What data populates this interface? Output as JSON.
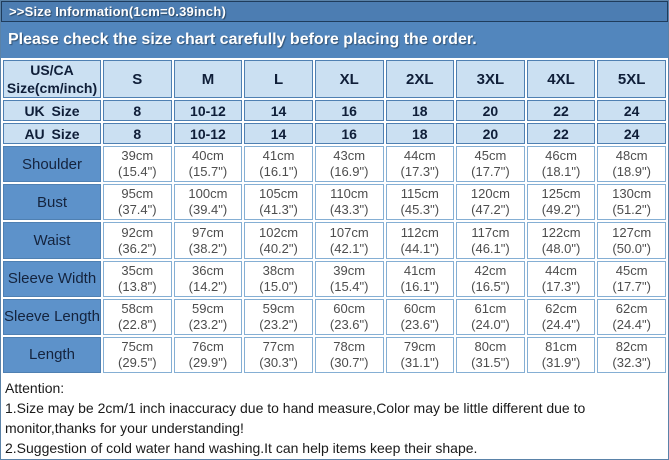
{
  "colors": {
    "outer-border": "#5a82a8",
    "banner-top": "#4c7db2",
    "banner-border": "#1f3c5c",
    "banner-sub": "#5286bd",
    "header-bg": "#cbe0f2",
    "header-text": "#0f1e38",
    "steel-border": "#4f80b2",
    "label-bg": "#5d92ca",
    "label-text": "#14233d",
    "light-border": "#85afd4",
    "data-text": "#4d4d4d",
    "attention-text": "#1a1a1a"
  },
  "banners": {
    "title": ">>Size Information(1cm=0.39inch)",
    "subtitle": "Please check the size chart carefully before placing the order."
  },
  "size_chart": {
    "corner_label": "US/CA Size(cm/inch)",
    "size_columns": [
      "S",
      "M",
      "L",
      "XL",
      "2XL",
      "3XL",
      "4XL",
      "5XL"
    ],
    "region_rows": [
      {
        "label": "UK Size",
        "values": [
          "8",
          "10-12",
          "14",
          "16",
          "18",
          "20",
          "22",
          "24"
        ]
      },
      {
        "label": "AU Size",
        "values": [
          "8",
          "10-12",
          "14",
          "16",
          "18",
          "20",
          "22",
          "24"
        ]
      }
    ],
    "measurement_rows": [
      {
        "label": "Shoulder",
        "cm": [
          "39cm",
          "40cm",
          "41cm",
          "43cm",
          "44cm",
          "45cm",
          "46cm",
          "48cm"
        ],
        "inch": [
          "(15.4\")",
          "(15.7\")",
          "(16.1\")",
          "(16.9\")",
          "(17.3\")",
          "(17.7\")",
          "(18.1\")",
          "(18.9\")"
        ]
      },
      {
        "label": "Bust",
        "cm": [
          "95cm",
          "100cm",
          "105cm",
          "110cm",
          "115cm",
          "120cm",
          "125cm",
          "130cm"
        ],
        "inch": [
          "(37.4\")",
          "(39.4\")",
          "(41.3\")",
          "(43.3\")",
          "(45.3\")",
          "(47.2\")",
          "(49.2\")",
          "(51.2\")"
        ]
      },
      {
        "label": "Waist",
        "cm": [
          "92cm",
          "97cm",
          "102cm",
          "107cm",
          "112cm",
          "117cm",
          "122cm",
          "127cm"
        ],
        "inch": [
          "(36.2\")",
          "(38.2\")",
          "(40.2\")",
          "(42.1\")",
          "(44.1\")",
          "(46.1\")",
          "(48.0\")",
          "(50.0\")"
        ]
      },
      {
        "label": "Sleeve Width",
        "cm": [
          "35cm",
          "36cm",
          "38cm",
          "39cm",
          "41cm",
          "42cm",
          "44cm",
          "45cm"
        ],
        "inch": [
          "(13.8\")",
          "(14.2\")",
          "(15.0\")",
          "(15.4\")",
          "(16.1\")",
          "(16.5\")",
          "(17.3\")",
          "(17.7\")"
        ]
      },
      {
        "label": "Sleeve Length",
        "cm": [
          "58cm",
          "59cm",
          "59cm",
          "60cm",
          "60cm",
          "61cm",
          "62cm",
          "62cm"
        ],
        "inch": [
          "(22.8\")",
          "(23.2\")",
          "(23.2\")",
          "(23.6\")",
          "(23.6\")",
          "(24.0\")",
          "(24.4\")",
          "(24.4\")"
        ]
      },
      {
        "label": "Length",
        "cm": [
          "75cm",
          "76cm",
          "77cm",
          "78cm",
          "79cm",
          "80cm",
          "81cm",
          "82cm"
        ],
        "inch": [
          "(29.5\")",
          "(29.9\")",
          "(30.3\")",
          "(30.7\")",
          "(31.1\")",
          "(31.5\")",
          "(31.9\")",
          "(32.3\")"
        ]
      }
    ]
  },
  "attention": {
    "heading": "Attention:",
    "notes": [
      "1.Size may be 2cm/1 inch inaccuracy due to hand measure,Color may be little different due to monitor,thanks for your understanding!",
      "2.Suggestion of cold water hand washing.It can help items keep their shape."
    ]
  }
}
